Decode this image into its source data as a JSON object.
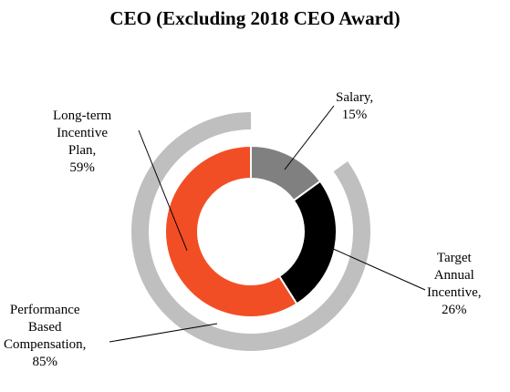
{
  "chart_data": {
    "type": "pie",
    "title": "CEO (Excluding 2018 CEO Award)",
    "inner_ring": [
      {
        "lines": [
          "Salary,",
          "15%"
        ],
        "value": 15,
        "color": "#808080"
      },
      {
        "lines": [
          "Target",
          "Annual",
          "Incentive,",
          "26%"
        ],
        "value": 26,
        "color": "#000000"
      },
      {
        "lines": [
          "Long-term",
          "Incentive",
          "Plan,",
          "59%"
        ],
        "value": 59,
        "color": "#F24E25"
      }
    ],
    "outer_ring": [
      {
        "lines": [
          "Performance",
          "Based",
          "Compensation,",
          "85%"
        ],
        "value": 85,
        "color": "#BFBFBF"
      },
      {
        "lines": [],
        "value": 15,
        "color": "#FFFFFF"
      }
    ]
  }
}
